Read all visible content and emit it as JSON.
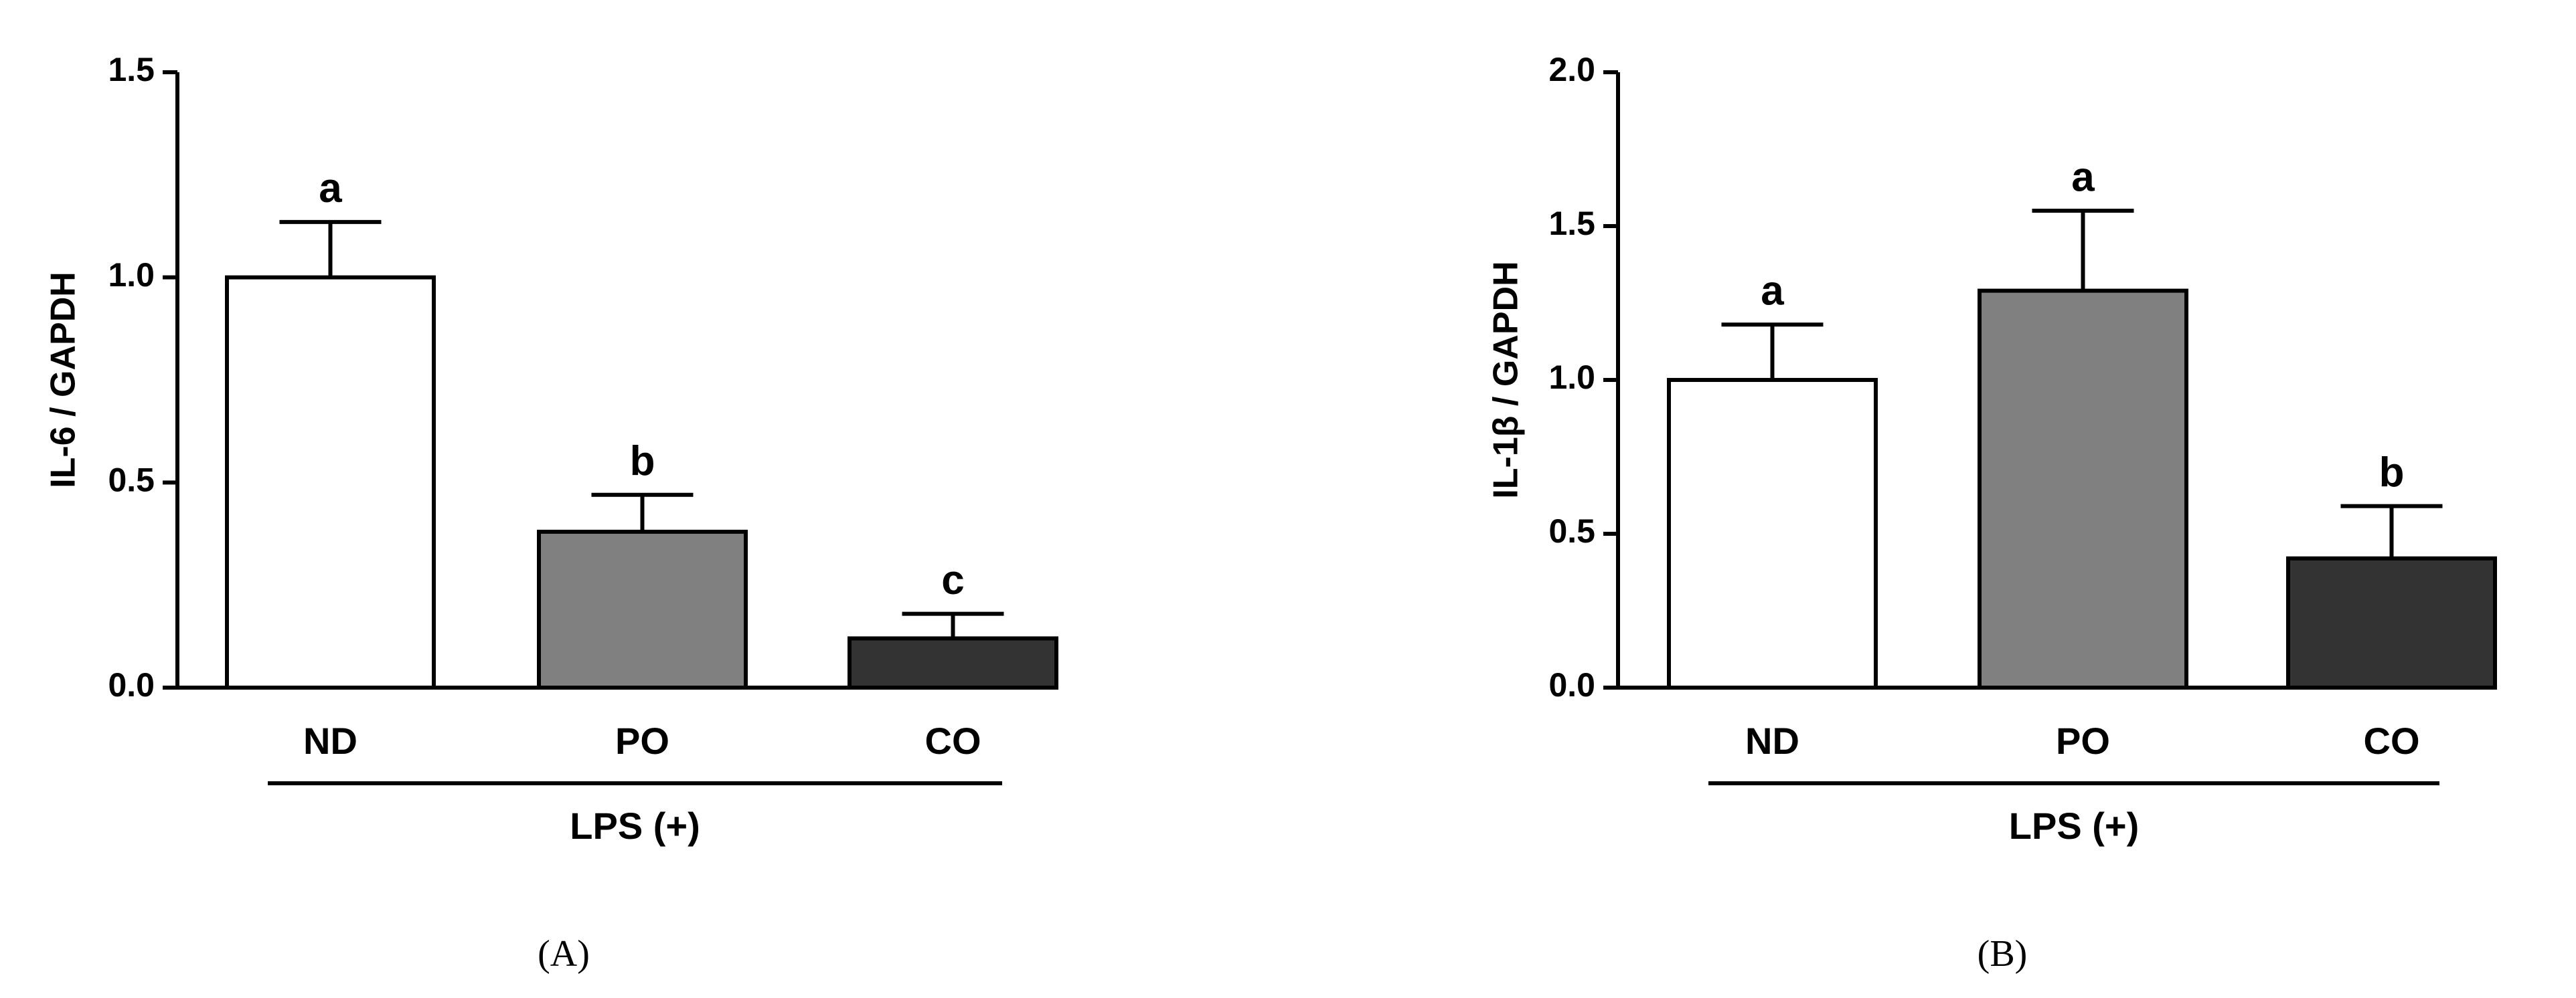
{
  "chart_data": [
    {
      "type": "bar",
      "ylabel": "IL-6 / GAPDH",
      "categories": [
        "ND",
        "PO",
        "CO"
      ],
      "values": [
        1.0,
        0.38,
        0.12
      ],
      "errors": [
        0.135,
        0.09,
        0.06
      ],
      "annotations": [
        "a",
        "b",
        "c"
      ],
      "colors": [
        "#ffffff",
        "#808080",
        "#333333"
      ],
      "ylim": [
        0,
        1.5
      ],
      "yticks": [
        {
          "value": 0,
          "label": "0.0"
        },
        0.5,
        {
          "value": 1,
          "label": "1.0"
        },
        1.5
      ],
      "group_label": "LPS (+)",
      "panel_label": "(A)"
    },
    {
      "type": "bar",
      "ylabel": "IL-1β / GAPDH",
      "categories": [
        "ND",
        "PO",
        "CO"
      ],
      "values": [
        1.0,
        1.29,
        0.42
      ],
      "errors": [
        0.18,
        0.26,
        0.17
      ],
      "annotations": [
        "a",
        "a",
        "b"
      ],
      "colors": [
        "#ffffff",
        "#808080",
        "#333333"
      ],
      "ylim": [
        0,
        2.0
      ],
      "yticks": [
        {
          "value": 0,
          "label": "0.0"
        },
        0.5,
        {
          "value": 1,
          "label": "1.0"
        },
        1.5,
        {
          "value": 2,
          "label": "2.0"
        }
      ],
      "group_label": "LPS (+)",
      "panel_label": "(B)"
    }
  ]
}
